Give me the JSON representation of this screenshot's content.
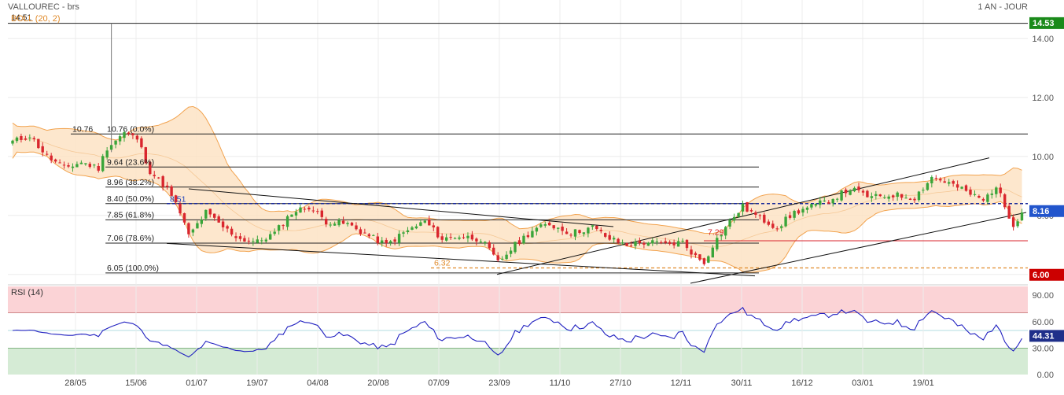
{
  "header": {
    "title": "VALLOUREC - brs",
    "indicator": "BOLL (20, 2)",
    "period": "1 AN - JOUR"
  },
  "rsi": {
    "label": "RSI (14)",
    "current": "44.31"
  },
  "colors": {
    "up": "#3aa53a",
    "down": "#d9262e",
    "band_fill": "#fde3c4",
    "band_line": "#f2a34f",
    "rsi_line": "#2020c0",
    "overbought": "#fbd3d6",
    "oversold": "#d5ebd5",
    "badge_high": "#1a8a1a",
    "badge_low": "#cc0000",
    "badge_last": "#2255cc"
  },
  "chart_data": [
    {
      "type": "candlestick",
      "xlabels": [
        "28/05",
        "15/06",
        "01/07",
        "19/07",
        "04/08",
        "20/08",
        "07/09",
        "23/09",
        "11/10",
        "27/10",
        "12/11",
        "30/11",
        "16/12",
        "03/01",
        "19/01"
      ],
      "yticks": [
        "6.00",
        "8.00",
        "10.00",
        "12.00",
        "14.00"
      ],
      "ylim": [
        5.7,
        15.3
      ],
      "badges": {
        "high": "14.53",
        "low": "6.00",
        "last": "8.16"
      },
      "annotations": {
        "top_level": "14.51",
        "fib_start": "10.76",
        "support_a": "8.51",
        "support_b": "6.32",
        "mid_level": "7.29"
      },
      "fibonacci": [
        {
          "label": "10.76  (0.0%)",
          "value": 10.76
        },
        {
          "label": "9.64  (23.6%)",
          "value": 9.64
        },
        {
          "label": "8.96  (38.2%)",
          "value": 8.96
        },
        {
          "label": "8.40  (50.0%)",
          "value": 8.4
        },
        {
          "label": "7.85  (61.8%)",
          "value": 7.85
        },
        {
          "label": "7.06  (78.6%)",
          "value": 7.06
        },
        {
          "label": "6.05  (100.0%)",
          "value": 6.05
        }
      ],
      "anchors": [
        {
          "i": 0,
          "c": 10.5
        },
        {
          "i": 4,
          "c": 10.7
        },
        {
          "i": 8,
          "c": 10.0
        },
        {
          "i": 12,
          "c": 9.6
        },
        {
          "i": 16,
          "c": 9.8
        },
        {
          "i": 20,
          "c": 9.6
        },
        {
          "i": 22,
          "c": 10.3
        },
        {
          "i": 26,
          "c": 10.8
        },
        {
          "i": 29,
          "c": 10.6
        },
        {
          "i": 32,
          "c": 9.5
        },
        {
          "i": 36,
          "c": 8.9
        },
        {
          "i": 39,
          "c": 8.1
        },
        {
          "i": 41,
          "c": 7.3
        },
        {
          "i": 45,
          "c": 8.1
        },
        {
          "i": 49,
          "c": 7.6
        },
        {
          "i": 53,
          "c": 7.2
        },
        {
          "i": 57,
          "c": 7.1
        },
        {
          "i": 61,
          "c": 7.4
        },
        {
          "i": 65,
          "c": 8.1
        },
        {
          "i": 69,
          "c": 8.3
        },
        {
          "i": 73,
          "c": 7.8
        },
        {
          "i": 78,
          "c": 7.7
        },
        {
          "i": 83,
          "c": 7.3
        },
        {
          "i": 87,
          "c": 7.0
        },
        {
          "i": 91,
          "c": 7.4
        },
        {
          "i": 96,
          "c": 7.8
        },
        {
          "i": 100,
          "c": 7.2
        },
        {
          "i": 104,
          "c": 7.3
        },
        {
          "i": 109,
          "c": 7.2
        },
        {
          "i": 113,
          "c": 6.4
        },
        {
          "i": 117,
          "c": 7.0
        },
        {
          "i": 121,
          "c": 7.5
        },
        {
          "i": 125,
          "c": 7.7
        },
        {
          "i": 130,
          "c": 7.4
        },
        {
          "i": 135,
          "c": 7.6
        },
        {
          "i": 139,
          "c": 7.2
        },
        {
          "i": 143,
          "c": 7.0
        },
        {
          "i": 148,
          "c": 7.1
        },
        {
          "i": 152,
          "c": 7.0
        },
        {
          "i": 156,
          "c": 7.1
        },
        {
          "i": 159,
          "c": 6.6
        },
        {
          "i": 161,
          "c": 6.4
        },
        {
          "i": 163,
          "c": 7.0
        },
        {
          "i": 167,
          "c": 7.8
        },
        {
          "i": 170,
          "c": 8.3
        },
        {
          "i": 174,
          "c": 7.9
        },
        {
          "i": 178,
          "c": 7.6
        },
        {
          "i": 182,
          "c": 8.1
        },
        {
          "i": 186,
          "c": 8.3
        },
        {
          "i": 190,
          "c": 8.5
        },
        {
          "i": 195,
          "c": 8.9
        },
        {
          "i": 200,
          "c": 8.6
        },
        {
          "i": 205,
          "c": 8.7
        },
        {
          "i": 210,
          "c": 8.6
        },
        {
          "i": 214,
          "c": 9.3
        },
        {
          "i": 218,
          "c": 9.1
        },
        {
          "i": 222,
          "c": 8.8
        },
        {
          "i": 226,
          "c": 8.5
        },
        {
          "i": 229,
          "c": 9.0
        },
        {
          "i": 231,
          "c": 8.3
        },
        {
          "i": 233,
          "c": 7.7
        },
        {
          "i": 235,
          "c": 8.1
        }
      ],
      "spike": {
        "i": 23,
        "high": 14.51
      }
    },
    {
      "type": "line",
      "name": "RSI (14)",
      "yticks": [
        "0.00",
        "30.00",
        "60.00",
        "90.00"
      ],
      "ylim": [
        0,
        100
      ],
      "overbought": 70,
      "oversold": 30,
      "midline": 50
    }
  ]
}
